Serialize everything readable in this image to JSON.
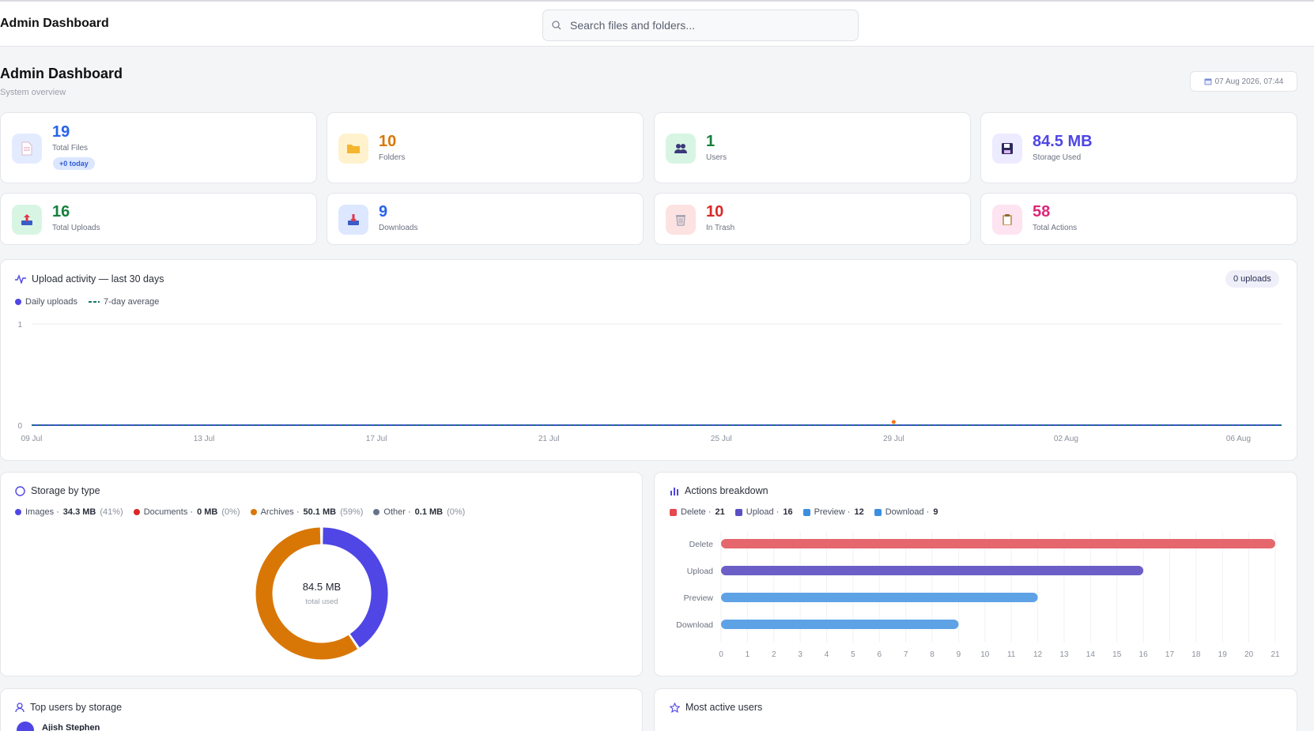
{
  "header": {
    "app_title": "Admin Dashboard",
    "search_placeholder": "Search files and folders..."
  },
  "page": {
    "title": "Admin Dashboard",
    "subtitle": "System overview",
    "datetime": "07 Aug 2026, 07:44"
  },
  "stats": [
    {
      "value": "19",
      "label": "Total Files",
      "badge": "+0 today",
      "color": "#2563eb",
      "icon": "file-icon"
    },
    {
      "value": "10",
      "label": "Folders",
      "color": "#d97706",
      "icon": "folder-icon"
    },
    {
      "value": "1",
      "label": "Users",
      "color": "#15803d",
      "icon": "users-icon"
    },
    {
      "value": "84.5 MB",
      "label": "Storage Used",
      "color": "#4f46e5",
      "icon": "floppy-disk-icon"
    },
    {
      "value": "16",
      "label": "Total Uploads",
      "color": "#15803d",
      "icon": "upload-tray-icon"
    },
    {
      "value": "9",
      "label": "Downloads",
      "color": "#2563eb",
      "icon": "download-tray-icon"
    },
    {
      "value": "10",
      "label": "In Trash",
      "color": "#dc2626",
      "icon": "trash-icon"
    },
    {
      "value": "58",
      "label": "Total Actions",
      "color": "#db2777",
      "icon": "clipboard-icon"
    }
  ],
  "upload_activity": {
    "title": "Upload activity — last 30 days",
    "total_pill": "0 uploads",
    "legend": [
      "Daily uploads",
      "7-day average"
    ],
    "colors": {
      "daily": "#4f46e5",
      "average": "#0f766e",
      "marker": "#f97316"
    }
  },
  "storage_by_type": {
    "title": "Storage by type",
    "center_value": "84.5 MB",
    "center_label": "total used"
  },
  "actions_breakdown": {
    "title": "Actions breakdown"
  },
  "top_users": {
    "title": "Top users by storage",
    "first_user": "Ajish Stephen"
  },
  "most_active": {
    "title": "Most active users"
  },
  "chart_data": [
    {
      "type": "line",
      "x": [
        "09 Jul",
        "10 Jul",
        "11 Jul",
        "12 Jul",
        "13 Jul",
        "14 Jul",
        "15 Jul",
        "16 Jul",
        "17 Jul",
        "18 Jul",
        "19 Jul",
        "20 Jul",
        "21 Jul",
        "22 Jul",
        "23 Jul",
        "24 Jul",
        "25 Jul",
        "26 Jul",
        "27 Jul",
        "28 Jul",
        "29 Jul",
        "30 Jul",
        "31 Jul",
        "01 Aug",
        "02 Aug",
        "03 Aug",
        "04 Aug",
        "05 Aug",
        "06 Aug",
        "07 Aug"
      ],
      "xticks": [
        "09 Jul",
        "13 Jul",
        "17 Jul",
        "21 Jul",
        "25 Jul",
        "29 Jul",
        "02 Aug",
        "06 Aug"
      ],
      "series": [
        {
          "name": "Daily uploads",
          "values": [
            0,
            0,
            0,
            0,
            0,
            0,
            0,
            0,
            0,
            0,
            0,
            0,
            0,
            0,
            0,
            0,
            0,
            0,
            0,
            0,
            0,
            0,
            0,
            0,
            0,
            0,
            0,
            0,
            0,
            0
          ]
        },
        {
          "name": "7-day average",
          "values": [
            0,
            0,
            0,
            0,
            0,
            0,
            0,
            0,
            0,
            0,
            0,
            0,
            0,
            0,
            0,
            0,
            0,
            0,
            0,
            0,
            0,
            0,
            0,
            0,
            0,
            0,
            0,
            0,
            0,
            0
          ]
        }
      ],
      "highlight": {
        "x": "29 Jul",
        "y": 0
      },
      "ylim": [
        0,
        1
      ],
      "yticks": [
        0,
        1
      ]
    },
    {
      "type": "pie",
      "slices": [
        {
          "name": "Images",
          "size": "34.3 MB",
          "pct": "41%",
          "value": 34.3,
          "color": "#4f46e5"
        },
        {
          "name": "Documents",
          "size": "0 MB",
          "pct": "0%",
          "value": 0,
          "color": "#dc2626"
        },
        {
          "name": "Archives",
          "size": "50.1 MB",
          "pct": "59%",
          "value": 50.1,
          "color": "#d97706"
        },
        {
          "name": "Other",
          "size": "0.1 MB",
          "pct": "0%",
          "value": 0.1,
          "color": "#64748b"
        }
      ]
    },
    {
      "type": "bar",
      "orientation": "horizontal",
      "categories": [
        "Delete",
        "Upload",
        "Preview",
        "Download"
      ],
      "values": [
        21,
        16,
        12,
        9
      ],
      "colors": [
        "#e5676d",
        "#6b5fc7",
        "#5ea2e6",
        "#5ea2e6"
      ],
      "legend_colors": [
        "#e5484d",
        "#5b4fc4",
        "#3b8fe0",
        "#3b8fe0"
      ],
      "xlim": [
        0,
        21
      ],
      "xticks": [
        0,
        1,
        2,
        3,
        4,
        5,
        6,
        7,
        8,
        9,
        10,
        11,
        12,
        13,
        14,
        15,
        16,
        17,
        18,
        19,
        20,
        21
      ]
    }
  ]
}
